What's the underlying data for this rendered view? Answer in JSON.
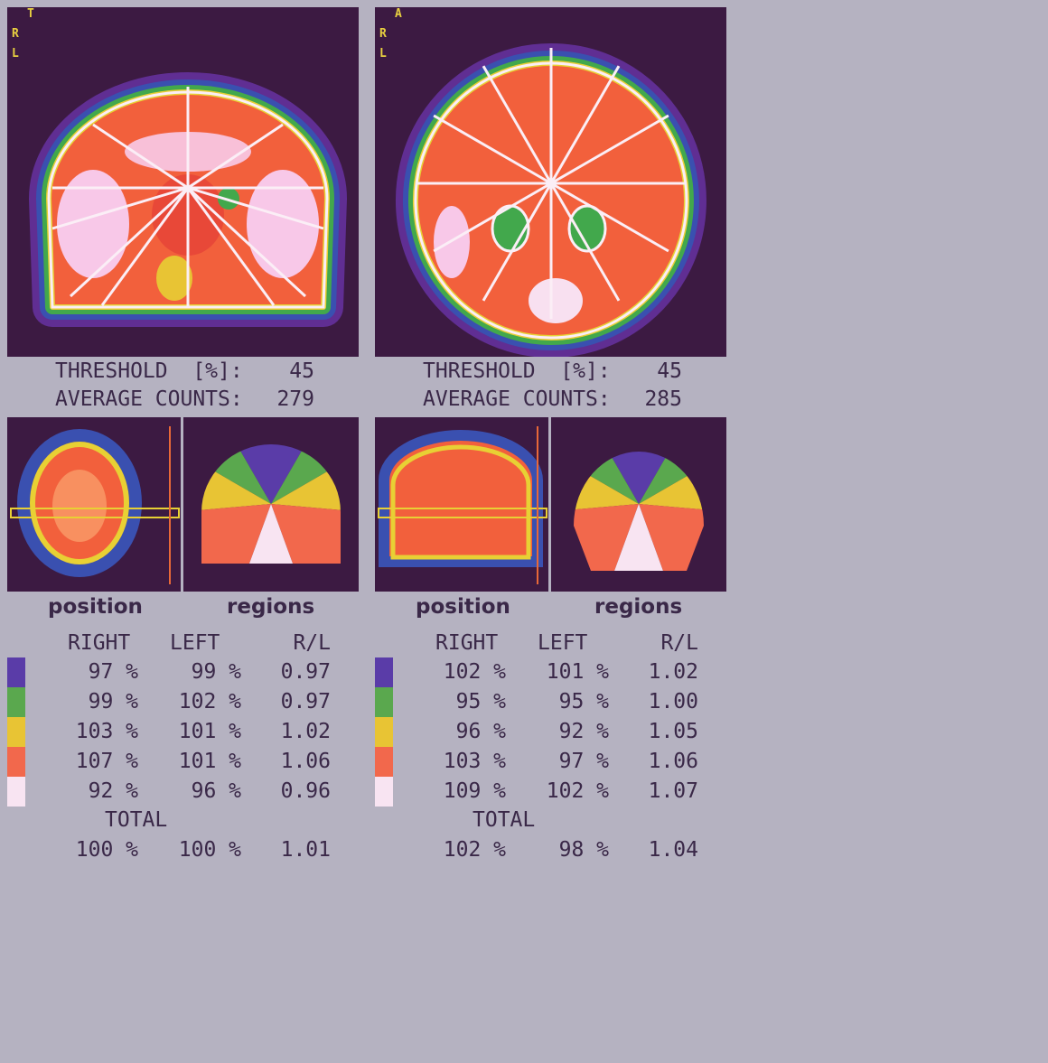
{
  "panels": [
    {
      "orientation": [
        "T",
        "R",
        "L"
      ],
      "threshold_label": "THRESHOLD  [%]:",
      "threshold": 45,
      "average_label": "AVERAGE COUNTS:",
      "average": 279,
      "position_label": "position",
      "regions_label": "regions",
      "region_colors": [
        "#5a3ca8",
        "#5aa84e",
        "#e8c434",
        "#f2684c",
        "#f8e4f2"
      ],
      "table": {
        "header": [
          "RIGHT",
          "LEFT",
          "R/L"
        ],
        "rows": [
          [
            "97 %",
            "99 %",
            "0.97"
          ],
          [
            "99 %",
            "102 %",
            "0.97"
          ],
          [
            "103 %",
            "101 %",
            "1.02"
          ],
          [
            "107 %",
            "101 %",
            "1.06"
          ],
          [
            "92 %",
            "96 %",
            "0.96"
          ]
        ],
        "total_label": "TOTAL",
        "total": [
          "100 %",
          "100 %",
          "1.01"
        ]
      }
    },
    {
      "orientation": [
        "A",
        "R",
        "L"
      ],
      "threshold_label": "THRESHOLD  [%]:",
      "threshold": 45,
      "average_label": "AVERAGE COUNTS:",
      "average": 285,
      "position_label": "position",
      "regions_label": "regions",
      "region_colors": [
        "#5a3ca8",
        "#5aa84e",
        "#e8c434",
        "#f2684c",
        "#f8e4f2"
      ],
      "table": {
        "header": [
          "RIGHT",
          "LEFT",
          "R/L"
        ],
        "rows": [
          [
            "102 %",
            "101 %",
            "1.02"
          ],
          [
            "95 %",
            "95 %",
            "1.00"
          ],
          [
            "96 %",
            "92 %",
            "1.05"
          ],
          [
            "103 %",
            "97 %",
            "1.06"
          ],
          [
            "109 %",
            "102 %",
            "1.07"
          ]
        ],
        "total_label": "TOTAL",
        "total": [
          "102 %",
          "98 %",
          "1.04"
        ]
      }
    }
  ]
}
